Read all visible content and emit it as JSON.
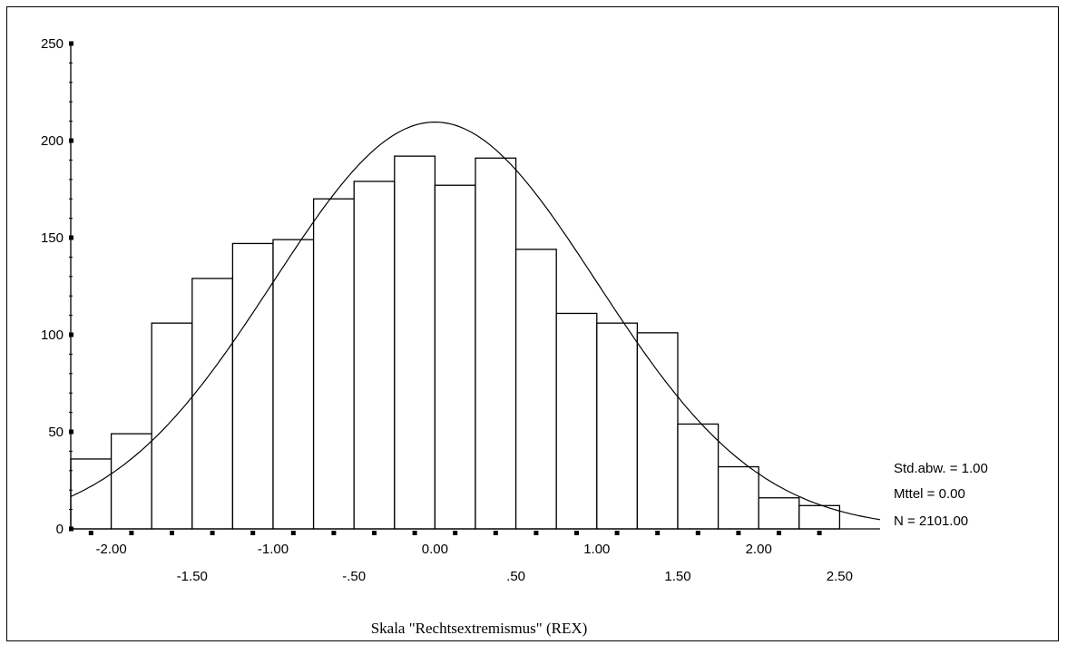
{
  "chart_data": {
    "type": "bar",
    "subtype": "histogram-with-normal-curve",
    "xlabel": "Skala \"Rechtsextremismus\" (REX)",
    "ylabel": "",
    "xlim": [
      -2.25,
      2.75
    ],
    "ylim": [
      0,
      250
    ],
    "yticks": [
      0,
      50,
      100,
      150,
      200,
      250
    ],
    "xticks": [
      {
        "value": -2.0,
        "label": "-2.00",
        "row": 1
      },
      {
        "value": -1.5,
        "label": "-1.50",
        "row": 2
      },
      {
        "value": -1.0,
        "label": "-1.00",
        "row": 1
      },
      {
        "value": -0.5,
        "label": "-.50",
        "row": 2
      },
      {
        "value": 0.0,
        "label": "0.00",
        "row": 1
      },
      {
        "value": 0.5,
        "label": ".50",
        "row": 2
      },
      {
        "value": 1.0,
        "label": "1.00",
        "row": 1
      },
      {
        "value": 1.5,
        "label": "1.50",
        "row": 2
      },
      {
        "value": 2.0,
        "label": "2.00",
        "row": 1
      },
      {
        "value": 2.5,
        "label": "2.50",
        "row": 2
      }
    ],
    "bin_width": 0.25,
    "bins": [
      {
        "x": -2.125,
        "value": 36
      },
      {
        "x": -1.875,
        "value": 49
      },
      {
        "x": -1.625,
        "value": 106
      },
      {
        "x": -1.375,
        "value": 129
      },
      {
        "x": -1.125,
        "value": 147
      },
      {
        "x": -0.875,
        "value": 149
      },
      {
        "x": -0.625,
        "value": 170
      },
      {
        "x": -0.375,
        "value": 179
      },
      {
        "x": -0.125,
        "value": 192
      },
      {
        "x": 0.125,
        "value": 177
      },
      {
        "x": 0.375,
        "value": 191
      },
      {
        "x": 0.625,
        "value": 144
      },
      {
        "x": 0.875,
        "value": 111
      },
      {
        "x": 1.125,
        "value": 106
      },
      {
        "x": 1.375,
        "value": 101
      },
      {
        "x": 1.625,
        "value": 54
      },
      {
        "x": 1.875,
        "value": 32
      },
      {
        "x": 2.125,
        "value": 16
      },
      {
        "x": 2.375,
        "value": 12
      }
    ],
    "normal_curve": {
      "mean": 0.0,
      "std": 1.0,
      "n": 2101.0
    },
    "stats": {
      "std_label": "Std.abw. = 1.00",
      "mean_label": "Mttel = 0.00",
      "n_label": "N = 2101.00"
    },
    "grid": false,
    "legend": "none"
  }
}
